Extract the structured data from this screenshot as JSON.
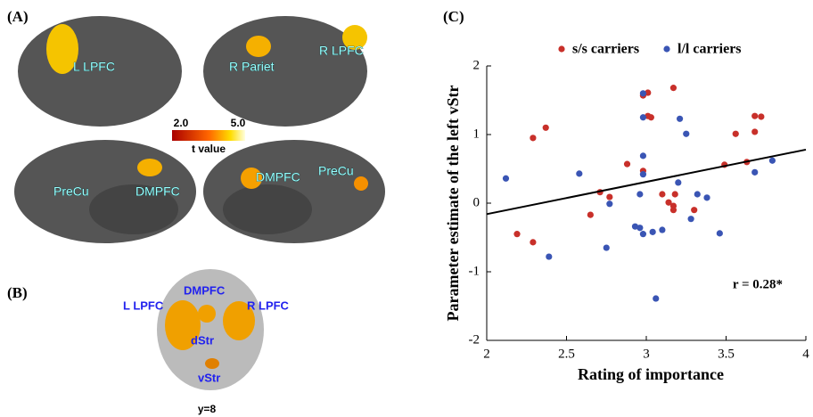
{
  "panel_a": {
    "letter": "(A)",
    "labels": [
      "L LPFC",
      "R Pariet",
      "R LPFC",
      "PreCu",
      "DMPFC",
      "DMPFC",
      "PreCu"
    ],
    "colorbar": {
      "labels": [
        "2.0",
        "5.0"
      ],
      "title": "t value"
    }
  },
  "panel_b": {
    "letter": "(B)",
    "labels": [
      "L LPFC",
      "DMPFC",
      "R LPFC",
      "dStr",
      "vStr"
    ],
    "slice": "y=8"
  },
  "chart_data": {
    "type": "scatter",
    "letter": "(C)",
    "x_label": "Rating of importance",
    "y_label": "Parameter estimate of the left vStr",
    "xlim": [
      2,
      4
    ],
    "ylim": [
      -2,
      2
    ],
    "xticks": [
      2,
      2.5,
      3,
      3.5,
      4
    ],
    "yticks": [
      -2,
      -1,
      0,
      1,
      2
    ],
    "series": [
      {
        "name": "s/s carriers",
        "color": "#c8302a",
        "x": [
          2.19,
          2.29,
          2.37,
          2.29,
          2.65,
          2.71,
          2.77,
          2.88,
          2.98,
          2.98,
          3.01,
          3.01,
          3.03,
          3.1,
          3.14,
          3.17,
          3.18,
          3.17,
          3.17,
          3.3,
          3.56,
          3.49,
          3.63,
          3.68,
          3.72,
          3.68
        ],
        "values": [
          -0.45,
          0.95,
          1.1,
          -0.57,
          -0.17,
          0.16,
          0.09,
          0.57,
          0.47,
          1.57,
          1.61,
          1.27,
          1.25,
          0.13,
          0.01,
          -0.04,
          0.13,
          -0.1,
          1.68,
          -0.1,
          1.01,
          0.56,
          0.6,
          1.27,
          1.26,
          1.04
        ]
      },
      {
        "name": "l/l carriers",
        "color": "#3a55b4",
        "x": [
          2.12,
          2.58,
          2.39,
          2.77,
          2.75,
          2.96,
          2.93,
          2.96,
          2.98,
          2.98,
          2.98,
          2.98,
          2.98,
          3.04,
          3.1,
          3.06,
          3.2,
          3.21,
          3.25,
          3.28,
          3.32,
          3.38,
          3.46,
          3.68,
          3.79
        ],
        "values": [
          0.36,
          0.43,
          -0.78,
          -0.01,
          -0.65,
          0.13,
          -0.34,
          -0.36,
          -0.45,
          1.6,
          1.25,
          0.69,
          0.42,
          -0.42,
          -0.39,
          -1.39,
          0.3,
          1.23,
          1.01,
          -0.23,
          0.13,
          0.08,
          -0.44,
          0.45,
          0.62
        ]
      }
    ],
    "fit_line": {
      "x": [
        2,
        4
      ],
      "y": [
        -0.16,
        0.78
      ]
    },
    "annotation": "r = 0.28*"
  }
}
